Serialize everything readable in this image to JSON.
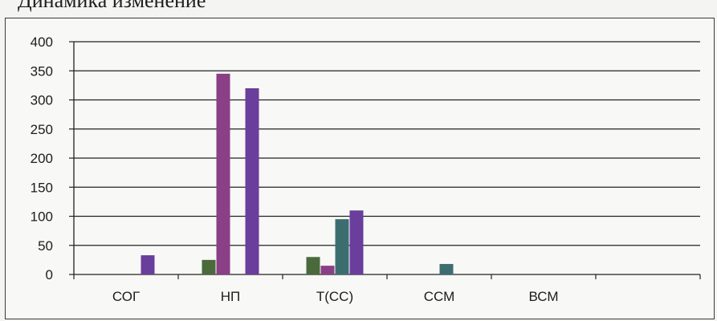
{
  "caption": "Динамика изменение",
  "chart_data": {
    "type": "bar",
    "categories": [
      "СОГ",
      "НП",
      "Т(СС)",
      "ССМ",
      "ВСМ",
      ""
    ],
    "series": [
      {
        "values": [
          0,
          25,
          30,
          0,
          0,
          0
        ]
      },
      {
        "values": [
          0,
          345,
          15,
          0,
          0,
          0
        ]
      },
      {
        "values": [
          0,
          0,
          95,
          18,
          0,
          0
        ]
      },
      {
        "values": [
          33,
          320,
          110,
          0,
          0,
          0
        ]
      }
    ],
    "yticks": [
      0,
      50,
      100,
      150,
      200,
      250,
      300,
      350,
      400
    ],
    "ylim": [
      0,
      400
    ],
    "grid": true,
    "colors": [
      "#4a6a3c",
      "#8a3f86",
      "#3c6e70",
      "#6a3e9c"
    ]
  }
}
